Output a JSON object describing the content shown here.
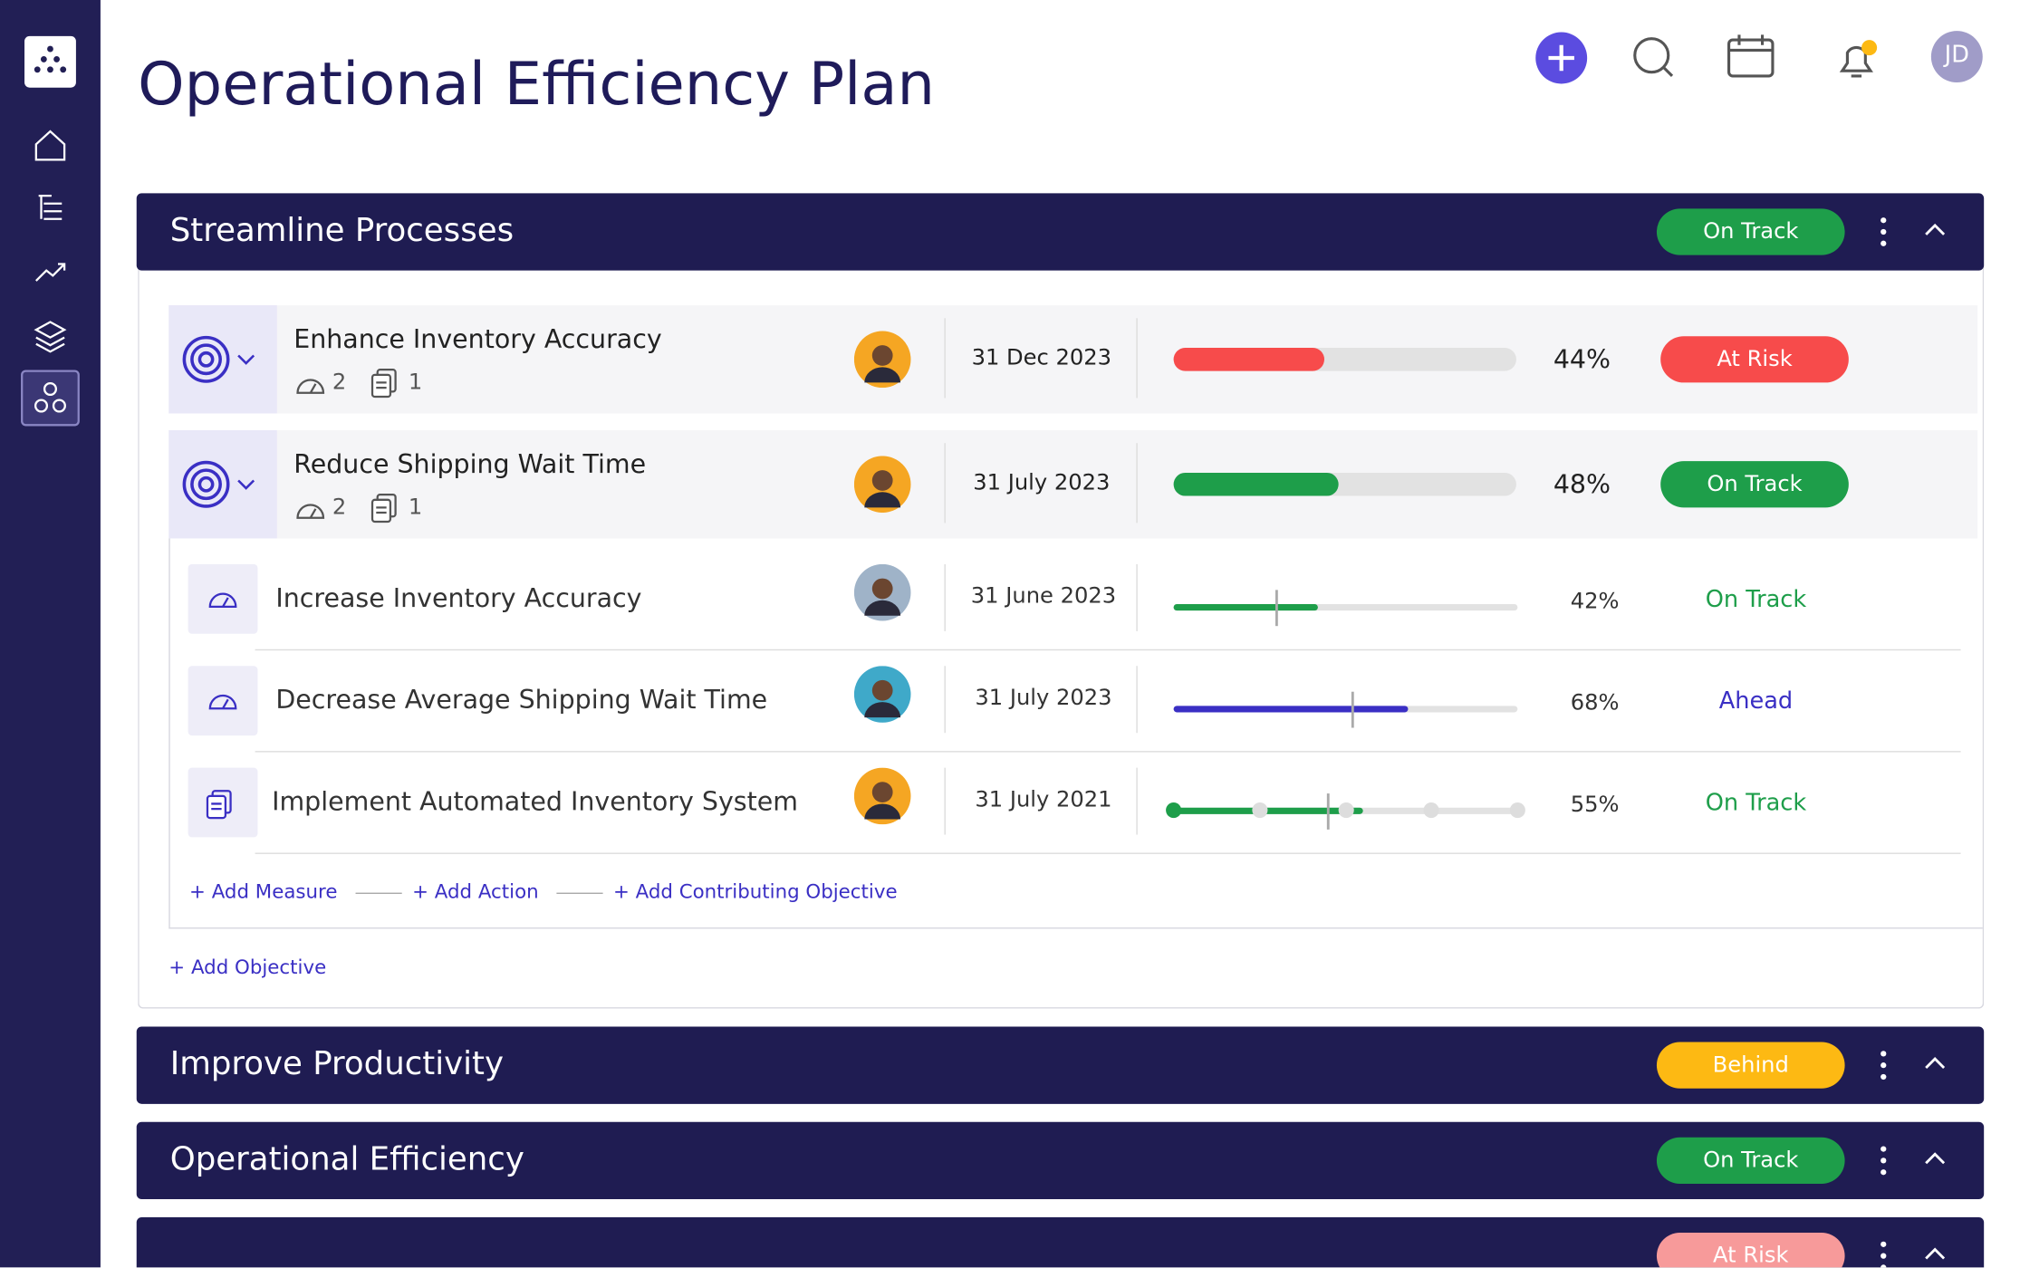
{
  "header": {
    "title": "Operational Efficiency Plan",
    "avatar": "JD"
  },
  "sections": [
    {
      "title": "Streamline Processes",
      "status": {
        "label": "On Track",
        "color": "#1e9e4a"
      },
      "objectives": [
        {
          "title": "Enhance Inventory Accuracy",
          "measures": 2,
          "actions": 1,
          "date": "31 Dec 2023",
          "progress": {
            "value": 44,
            "label": "44%"
          },
          "bar_color": "#f74b4b",
          "avatar_bg": "#f5a623",
          "status": {
            "label": "At Risk",
            "color": "#f74b4b"
          }
        },
        {
          "title": "Reduce Shipping Wait Time",
          "measures": 2,
          "actions": 1,
          "date": "31 July 2023",
          "progress": {
            "value": 48,
            "label": "48%"
          },
          "bar_color": "#1e9e4a",
          "avatar_bg": "#f5a623",
          "status": {
            "label": "On Track",
            "color": "#1e9e4a"
          }
        }
      ],
      "items": [
        {
          "kind": "measure",
          "title": "Increase Inventory Accuracy",
          "date": "31 June 2023",
          "progress": {
            "value": 42,
            "label": "42%"
          },
          "target": 30,
          "bar_color": "#1e9e4a",
          "avatar_bg": "#9fb3c8",
          "status": {
            "label": "On Track",
            "color": "#1e9e4a"
          }
        },
        {
          "kind": "measure",
          "title": "Decrease Average Shipping Wait Time",
          "date": "31 July 2023",
          "progress": {
            "value": 68,
            "label": "68%"
          },
          "target": 52,
          "bar_color": "#3a2fc4",
          "avatar_bg": "#3fa9c9",
          "status": {
            "label": "Ahead",
            "color": "#3a2fc4"
          }
        },
        {
          "kind": "action",
          "title": "Implement Automated Inventory System",
          "date": "31 July 2021",
          "progress": {
            "value": 55,
            "label": "55%"
          },
          "target": 45,
          "bar_color": "#1e9e4a",
          "avatar_bg": "#f5a623",
          "status": {
            "label": "On Track",
            "color": "#1e9e4a"
          }
        }
      ],
      "links": [
        "+ Add Measure",
        "+ Add Action",
        "+ Add Contributing Objective"
      ],
      "add_objective": "+ Add Objective"
    },
    {
      "title": "Improve Productivity",
      "status": {
        "label": "Behind",
        "color": "#fdb913"
      }
    },
    {
      "title": "Operational Efficiency",
      "status": {
        "label": "On Track",
        "color": "#1e9e4a"
      }
    },
    {
      "status": {
        "label": "At Risk",
        "color": "#f79a9a"
      }
    }
  ]
}
